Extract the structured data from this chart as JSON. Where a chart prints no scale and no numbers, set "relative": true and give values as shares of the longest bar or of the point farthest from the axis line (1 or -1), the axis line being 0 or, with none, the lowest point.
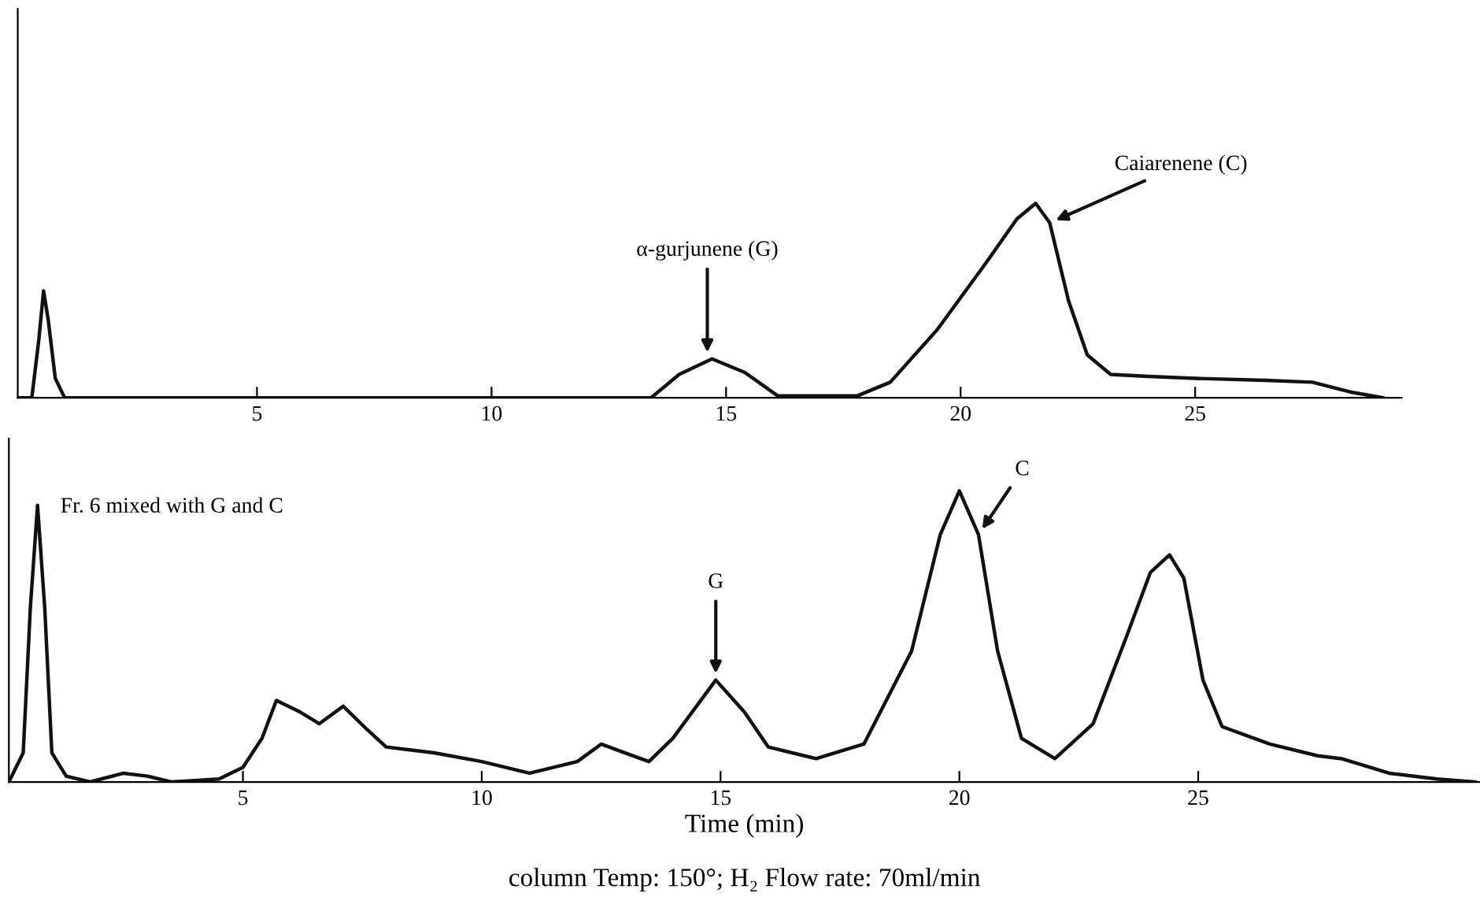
{
  "chart_data": [
    {
      "type": "line",
      "relative": true,
      "xlim": [
        -0.1,
        29.4
      ],
      "xticks": [
        5,
        10,
        15,
        20,
        25
      ],
      "tick_labels": "x",
      "grid": false,
      "legend": false,
      "marker": "none",
      "line_style": "solid",
      "series": [
        {
          "color": "#111111",
          "x": [
            -0.1,
            0.2,
            0.35,
            0.45,
            0.55,
            0.7,
            0.9,
            13.4,
            14,
            14.7,
            15.4,
            16.1,
            17.8,
            18.5,
            19.5,
            20.5,
            21.2,
            21.6,
            21.9,
            22.3,
            22.7,
            23.2,
            24,
            25,
            26.5,
            27.5,
            28.3,
            29
          ],
          "values": [
            0,
            0,
            0.3,
            0.55,
            0.4,
            0.1,
            0,
            0,
            0.12,
            0.2,
            0.13,
            0.01,
            0.01,
            0.08,
            0.35,
            0.68,
            0.92,
            1.0,
            0.9,
            0.5,
            0.22,
            0.12,
            0.11,
            0.1,
            0.09,
            0.08,
            0.03,
            0
          ]
        }
      ],
      "annotations": [
        {
          "text": "α-gurjunene (G)",
          "x": 14.6,
          "y": 0.2
        },
        {
          "text": "Caiarenene (C)",
          "x": 21.9,
          "y": 0.9
        }
      ]
    },
    {
      "type": "line",
      "relative": true,
      "xlim": [
        0.1,
        30.9
      ],
      "xticks": [
        5,
        10,
        15,
        20,
        25
      ],
      "tick_labels": "x",
      "grid": false,
      "legend": false,
      "marker": "none",
      "line_style": "solid",
      "xlabel": "Time (min)",
      "series": [
        {
          "color": "#111111",
          "x": [
            0.1,
            0.4,
            0.55,
            0.7,
            0.85,
            1.0,
            1.3,
            1.8,
            2.5,
            3,
            3.5,
            4.5,
            5,
            5.4,
            5.7,
            6.2,
            6.6,
            7.1,
            7.6,
            8,
            9,
            10,
            11,
            12,
            12.5,
            13,
            13.5,
            14,
            14.9,
            15.5,
            16,
            17,
            18,
            19,
            19.6,
            20,
            20.4,
            20.8,
            21.3,
            22,
            22.8,
            23.5,
            24,
            24.4,
            24.7,
            25.1,
            25.5,
            26.5,
            27.5,
            28,
            29,
            30,
            30.8
          ],
          "values": [
            0,
            0.1,
            0.6,
            0.95,
            0.6,
            0.1,
            0.02,
            0,
            0.03,
            0.02,
            0,
            0.01,
            0.05,
            0.15,
            0.28,
            0.24,
            0.2,
            0.26,
            0.18,
            0.12,
            0.1,
            0.07,
            0.03,
            0.07,
            0.13,
            0.1,
            0.07,
            0.15,
            0.35,
            0.24,
            0.12,
            0.08,
            0.13,
            0.45,
            0.85,
            1.0,
            0.85,
            0.45,
            0.15,
            0.08,
            0.2,
            0.5,
            0.72,
            0.78,
            0.7,
            0.35,
            0.19,
            0.13,
            0.09,
            0.08,
            0.03,
            0.01,
            0
          ]
        }
      ],
      "annotations": [
        "Fr. 6 mixed with G and C",
        "column Temp: 150°; H₂ Flow rate: 70ml/min",
        {
          "text": "G",
          "x": 14.9,
          "y": 0.35
        },
        {
          "text": "C",
          "x": 20.4,
          "y": 0.85
        }
      ]
    }
  ]
}
